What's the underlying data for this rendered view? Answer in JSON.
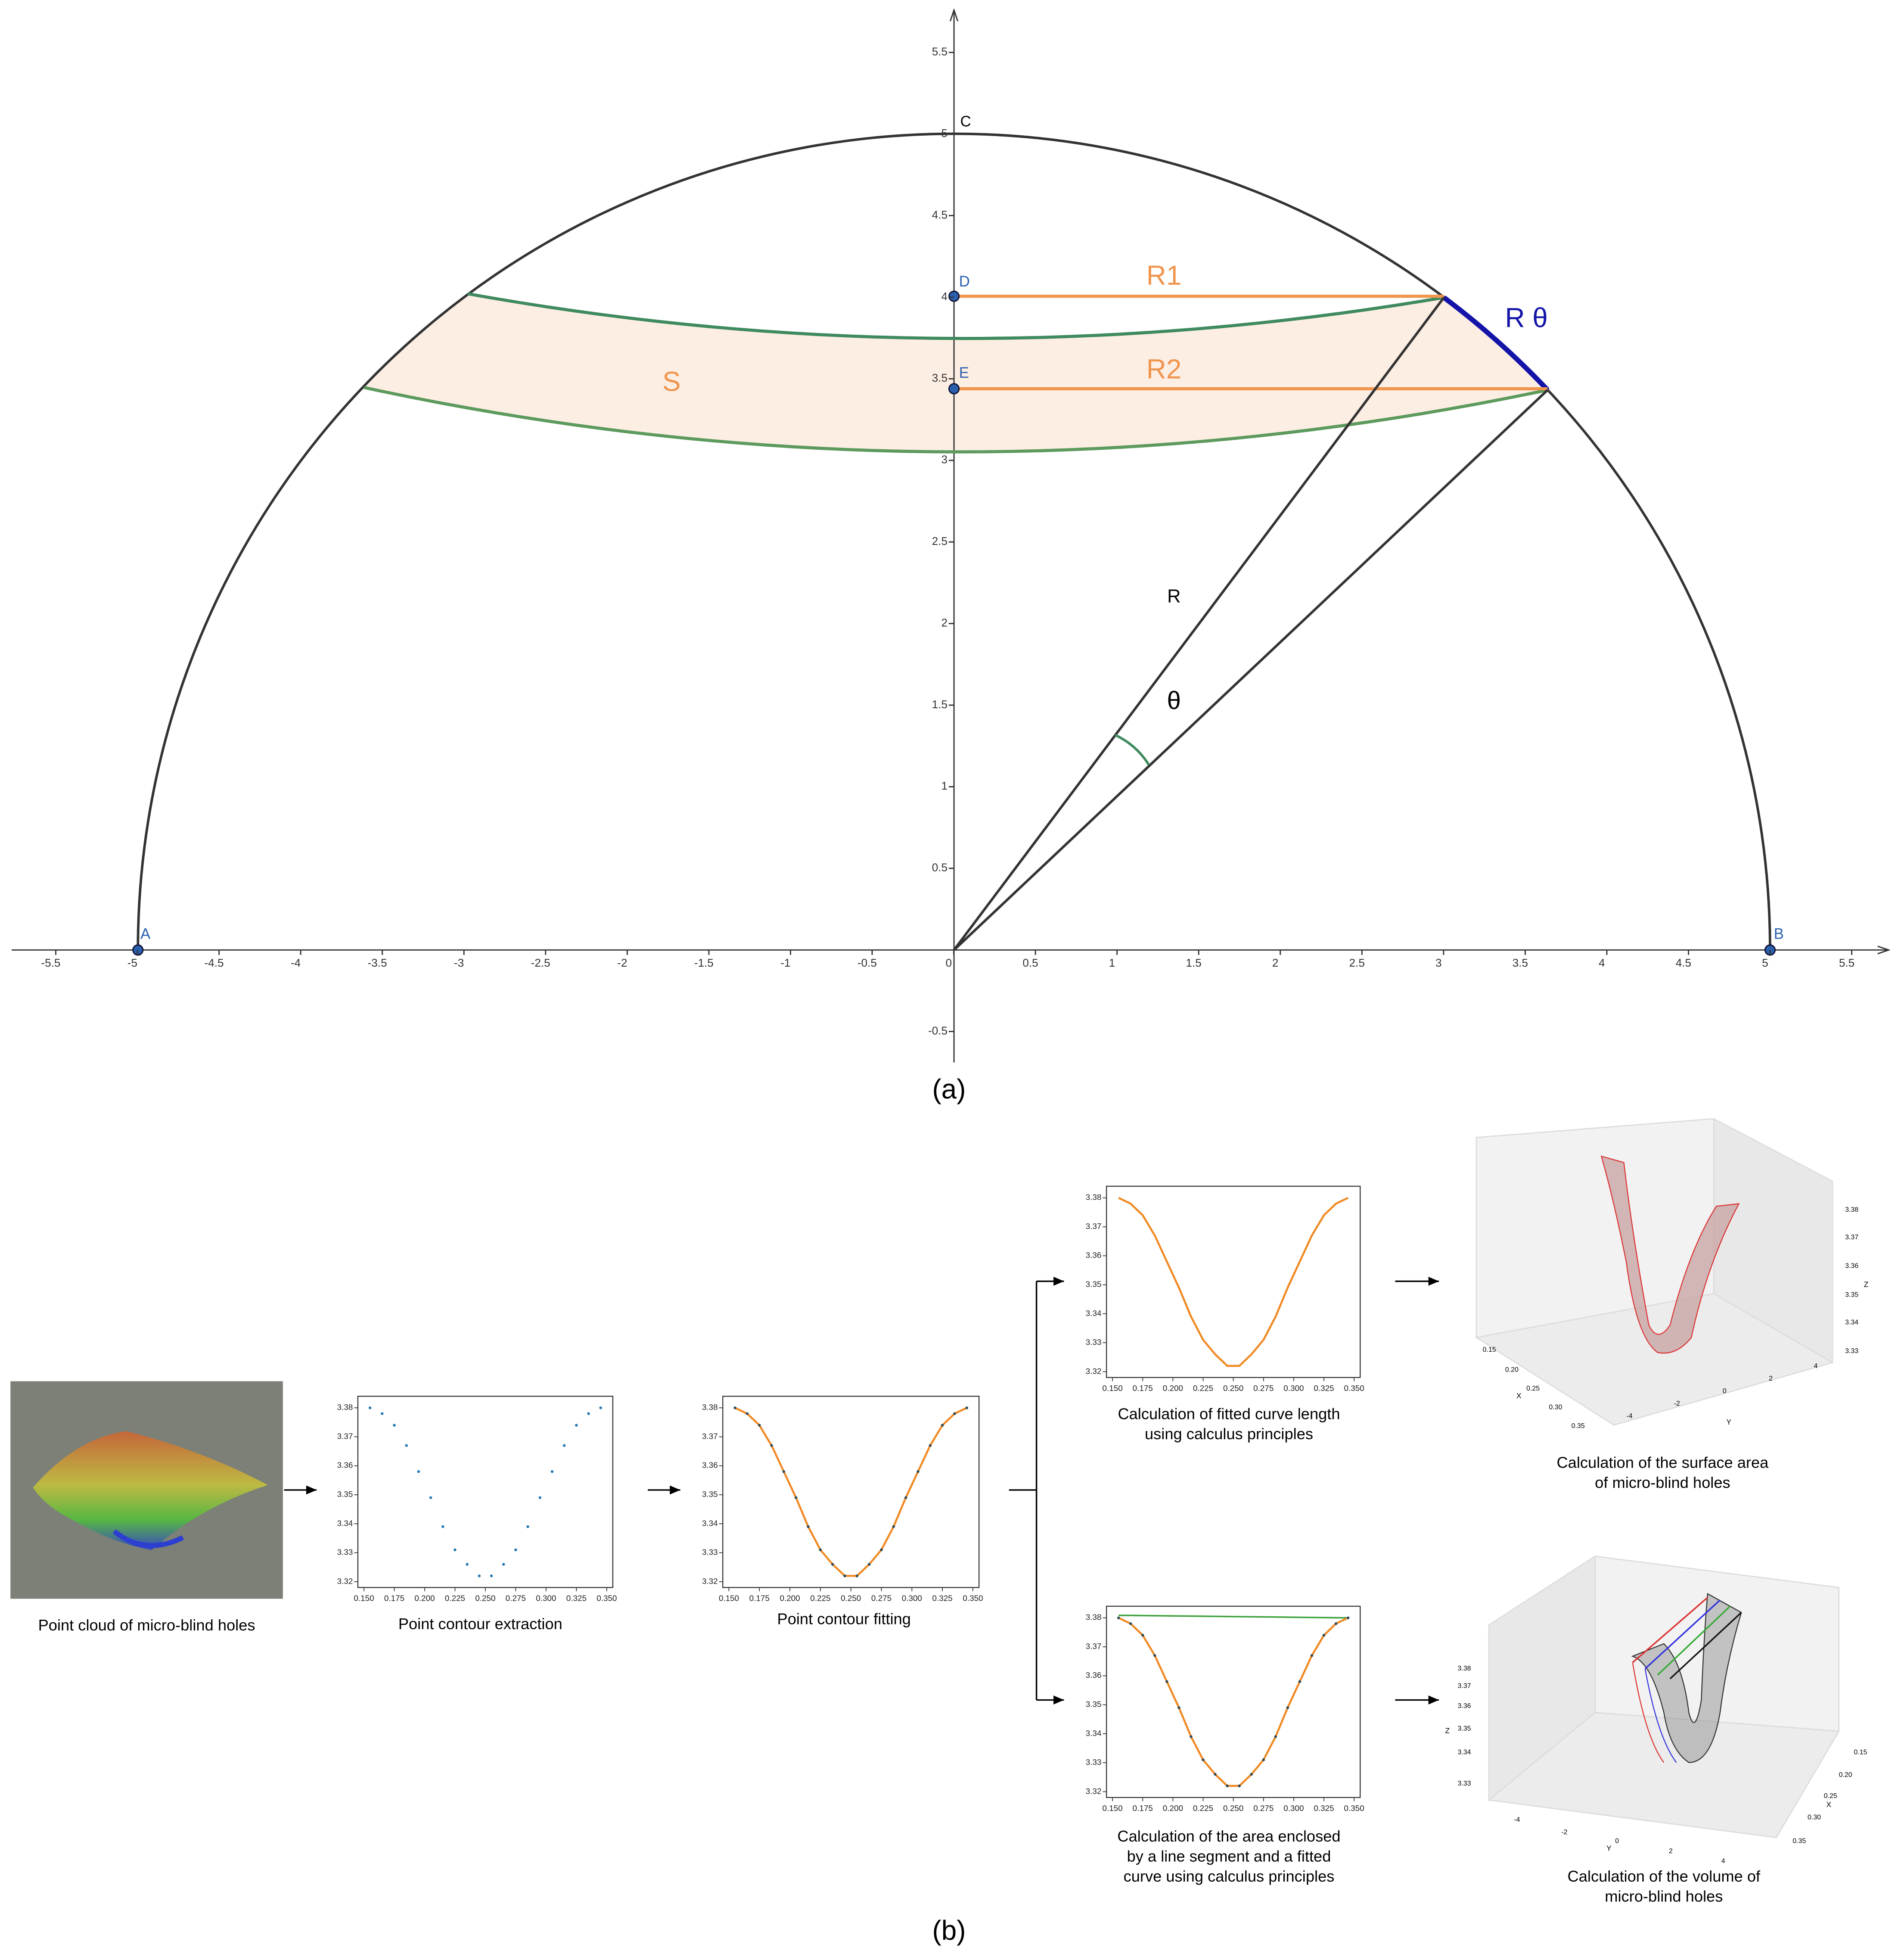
{
  "panel_a": {
    "label": "(a)",
    "xlim": [
      -5.77,
      5.727
    ],
    "ylim": [
      -0.69,
      5.76
    ],
    "xticks": [
      -5.5,
      -5,
      -4.5,
      -4,
      -3.5,
      -3,
      -2.5,
      -2,
      -1.5,
      -1,
      -0.5,
      0,
      0.5,
      1,
      1.5,
      2,
      2.5,
      3,
      3.5,
      4,
      4.5,
      5,
      5.5
    ],
    "yticks": [
      -0.5,
      0.5,
      1,
      1.5,
      2,
      2.5,
      3,
      3.5,
      4,
      4.5,
      5,
      5.5
    ],
    "point_labels": [
      "A",
      "B",
      "D",
      "E"
    ],
    "curve_label": "C",
    "segment_labels": [
      "R1",
      "R2"
    ],
    "arc_label": "R θ",
    "area_label": "S",
    "radius_label": "R",
    "angle_label": "θ"
  },
  "panel_b": {
    "label": "(b)",
    "captions": [
      [
        "Point cloud of micro-blind holes"
      ],
      [
        "Point contour extraction"
      ],
      [
        "Point contour fitting"
      ],
      [
        "Calculation of fitted curve length",
        "using calculus principles"
      ],
      [
        "Calculation of the surface area",
        "of micro-blind holes"
      ],
      [
        "Calculation of the area enclosed",
        "by a line segment and a fitted",
        "curve using calculus principles"
      ],
      [
        "Calculation of the volume of",
        "micro-blind holes"
      ]
    ],
    "plot_axes": {
      "xlim": [
        0.145,
        0.355
      ],
      "ylim": [
        3.318,
        3.384
      ],
      "xticks": [
        {
          "value": 0.15,
          "label": "0.150"
        },
        0.175,
        {
          "value": 0.2,
          "label": "0.200"
        },
        0.225,
        {
          "value": 0.25,
          "label": "0.250"
        },
        0.275,
        {
          "value": 0.3,
          "label": "0.300"
        },
        0.325,
        {
          "value": 0.35,
          "label": "0.350"
        }
      ],
      "yticks": [
        3.32,
        3.33,
        3.34,
        3.35,
        3.36,
        3.37,
        3.38
      ]
    },
    "contour": {
      "x": [
        0.155,
        0.165,
        0.175,
        0.185,
        0.195,
        0.205,
        0.215,
        0.225,
        0.235,
        0.245,
        0.255,
        0.265,
        0.275,
        0.285,
        0.295,
        0.305,
        0.315,
        0.325,
        0.335,
        0.345
      ],
      "y": [
        3.38,
        3.378,
        3.374,
        3.367,
        3.358,
        3.349,
        3.339,
        3.331,
        3.326,
        3.322,
        3.322,
        3.326,
        3.331,
        3.339,
        3.349,
        3.358,
        3.367,
        3.374,
        3.378,
        3.38
      ]
    },
    "surface_3d": {
      "x_axis": "X",
      "y_axis": "Y",
      "z_axis": "Z",
      "xticks": [
        "0.15",
        "0.20",
        "0.25",
        "0.30",
        "0.35"
      ],
      "yticks": [
        "-4",
        "-2",
        "0",
        "2",
        "4"
      ],
      "zticks": [
        "3.38",
        "3.37",
        "3.36",
        "3.35",
        "3.34",
        "3.33"
      ]
    },
    "volume_3d": {
      "x_axis": "X",
      "y_axis": "Y",
      "z_axis": "Z",
      "xticks": [
        "0.15",
        "0.20",
        "0.25",
        "0.30",
        "0.35"
      ],
      "yticks": [
        "-4",
        "-2",
        "0",
        "2",
        "4"
      ],
      "zticks": [
        "3.38",
        "3.37",
        "3.36",
        "3.35",
        "3.34",
        "3.33"
      ]
    }
  }
}
